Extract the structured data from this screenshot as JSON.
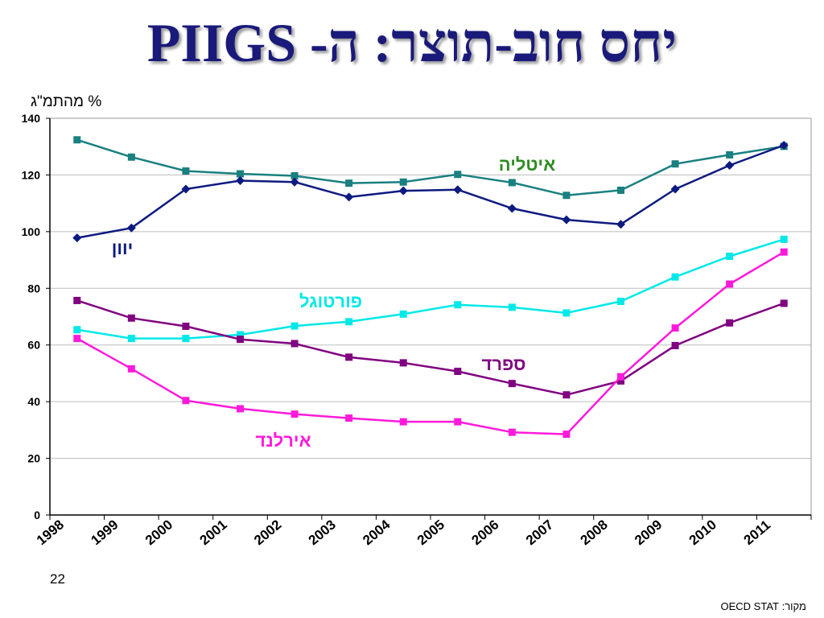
{
  "title": "יחס חוב-תוצר: ה- PIIGS",
  "page_number": "22",
  "source": "מקור: OECD STAT",
  "chart_data": {
    "type": "line",
    "title": "יחס חוב-תוצר: ה- PIIGS",
    "ylabel": "% מהתמ\"ג",
    "xlabel": "",
    "ylim": [
      0,
      140
    ],
    "yticks": [
      "0",
      "20",
      "40",
      "60",
      "80",
      "100",
      "120",
      "140"
    ],
    "categories": [
      "1998",
      "1999",
      "2000",
      "2001",
      "2002",
      "2003",
      "2004",
      "2005",
      "2006",
      "2007",
      "2008",
      "2009",
      "2010",
      "2011"
    ],
    "grid": "horizontal",
    "series": [
      {
        "name": "איטליה",
        "color": "#1a8080",
        "marker": "square",
        "values": [
          132.4,
          126.3,
          121.4,
          120.4,
          119.7,
          117.1,
          117.5,
          120.2,
          117.3,
          112.8,
          114.6,
          123.9,
          127.1,
          130.1
        ]
      },
      {
        "name": "יוון",
        "color": "#0d1a80",
        "marker": "diamond",
        "values": [
          97.8,
          101.3,
          115.0,
          118.0,
          117.5,
          112.2,
          114.4,
          114.8,
          108.2,
          104.2,
          102.6,
          115.0,
          123.4,
          130.5
        ]
      },
      {
        "name": "פורטוגל",
        "color": "#00e8e8",
        "marker": "square",
        "values": [
          65.4,
          62.3,
          62.3,
          63.6,
          66.7,
          68.2,
          70.9,
          74.2,
          73.3,
          71.3,
          75.4,
          84.0,
          91.3,
          97.3
        ]
      },
      {
        "name": "ספרד",
        "color": "#800080",
        "marker": "square",
        "values": [
          75.7,
          69.5,
          66.6,
          62.0,
          60.5,
          55.7,
          53.7,
          50.7,
          46.4,
          42.4,
          47.3,
          59.8,
          67.8,
          74.7
        ]
      },
      {
        "name": "אירלנד",
        "color": "#ff1adb",
        "marker": "square",
        "values": [
          62.3,
          51.6,
          40.4,
          37.5,
          35.6,
          34.2,
          32.9,
          32.9,
          29.2,
          28.5,
          48.8,
          66.0,
          81.5,
          92.8
        ]
      }
    ]
  }
}
